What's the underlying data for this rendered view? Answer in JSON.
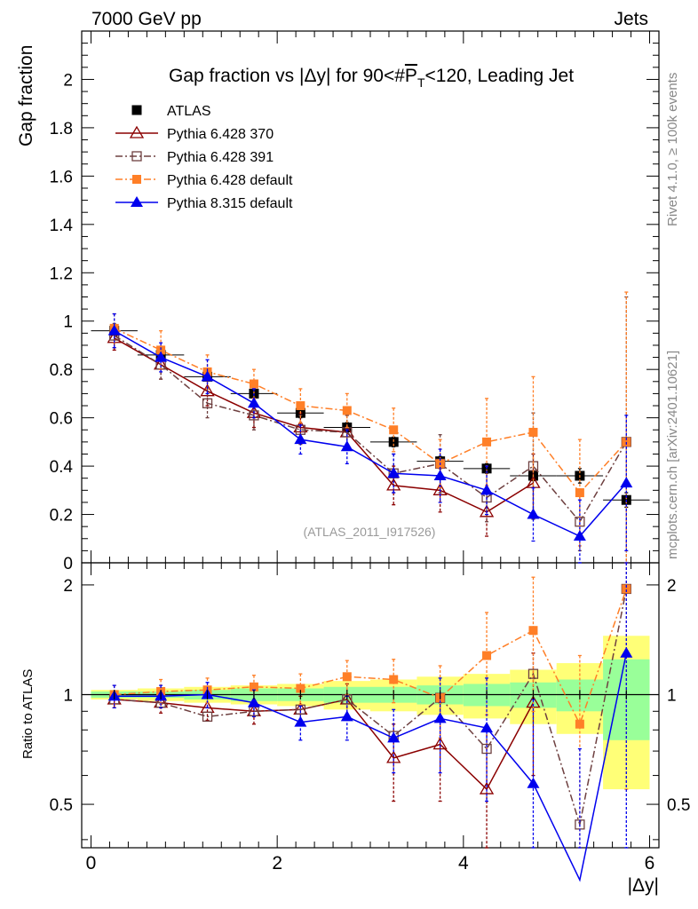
{
  "header": {
    "left": "7000 GeV pp",
    "right": "Jets"
  },
  "side_labels": {
    "rivet": "Rivet 4.1.0, ≥ 100k events",
    "mcplots": "mcplots.cern.ch [arXiv:2401.10621]"
  },
  "chart_data": {
    "type": "scatter",
    "title": "Gap fraction vs |Δy| for 90<#P̅T<120, Leading Jet",
    "title_parts": {
      "pre": "Gap fraction vs |Δy| for 90<#",
      "P": "P",
      "T": "T",
      "post": "<120, Leading Jet"
    },
    "xlabel": "|Δy|",
    "ylabel": "Gap fraction",
    "ratio_ylabel": "Ratio to ATLAS",
    "watermark": "(ATLAS_2011_I917526)",
    "xlim": [
      -0.1,
      6.1
    ],
    "ylim": [
      0,
      2.2
    ],
    "ratio_ylim": [
      0.38,
      2.3
    ],
    "x_ticks": [
      "0",
      "2",
      "4",
      "6"
    ],
    "y_ticks": [
      "0",
      "0.2",
      "0.4",
      "0.6",
      "0.8",
      "1",
      "1.2",
      "1.4",
      "1.6",
      "1.8",
      "2"
    ],
    "ratio_ticks": [
      "0.5",
      "1",
      "2"
    ],
    "x": [
      0.25,
      0.75,
      1.25,
      1.75,
      2.25,
      2.75,
      3.25,
      3.75,
      4.25,
      4.75,
      5.25,
      5.75
    ],
    "series": [
      {
        "name": "ATLAS",
        "style": "data",
        "color": "#000000",
        "values": [
          0.96,
          0.86,
          0.77,
          0.7,
          0.62,
          0.56,
          0.5,
          0.42,
          0.39,
          0.36,
          0.36,
          0.26
        ],
        "errors": [
          0.01,
          0.01,
          0.01,
          0.02,
          0.02,
          0.02,
          0.02,
          0.02,
          0.02,
          0.02,
          0.03,
          0.03
        ]
      },
      {
        "name": "Pythia 6.428 370",
        "style": "open-triangle",
        "dash": "",
        "color": "#8b0000",
        "values": [
          0.93,
          0.82,
          0.71,
          0.62,
          0.56,
          0.54,
          0.32,
          0.3,
          0.21,
          0.33,
          null,
          null
        ],
        "errors": [
          0.05,
          0.06,
          0.06,
          0.06,
          0.06,
          0.07,
          0.08,
          0.09,
          0.1,
          0.12,
          null,
          null
        ]
      },
      {
        "name": "Pythia 6.428 391",
        "style": "open-square",
        "dash": "8,3,2,3",
        "color": "#6e4040",
        "values": [
          0.94,
          0.82,
          0.66,
          0.61,
          0.55,
          0.54,
          0.37,
          0.41,
          0.27,
          0.4,
          0.17,
          0.5
        ],
        "errors": [
          0.05,
          0.06,
          0.06,
          0.06,
          0.06,
          0.07,
          0.08,
          0.12,
          0.1,
          0.22,
          0.12,
          0.6
        ]
      },
      {
        "name": "Pythia 6.428 default",
        "style": "filled-square",
        "dash": "8,3,2,3",
        "color": "#ff7f27",
        "values": [
          0.97,
          0.88,
          0.79,
          0.74,
          0.65,
          0.63,
          0.55,
          0.41,
          0.5,
          0.54,
          0.29,
          0.5
        ],
        "errors": [
          0.06,
          0.08,
          0.07,
          0.06,
          0.07,
          0.07,
          0.09,
          0.1,
          0.18,
          0.23,
          0.22,
          0.62
        ]
      },
      {
        "name": "Pythia 8.315 default",
        "style": "filled-triangle",
        "dash": "",
        "color": "#0000ee",
        "values": [
          0.96,
          0.85,
          0.77,
          0.66,
          0.51,
          0.48,
          0.37,
          0.36,
          0.3,
          0.2,
          0.11,
          0.33
        ],
        "errors": [
          0.07,
          0.06,
          0.07,
          0.06,
          0.06,
          0.07,
          0.08,
          0.11,
          0.1,
          0.11,
          0.15,
          0.28
        ]
      }
    ],
    "ratio_series": [
      {
        "name": "Pythia 6.428 370",
        "values": [
          0.97,
          0.95,
          0.92,
          0.9,
          0.91,
          0.97,
          0.67,
          0.73,
          0.55,
          0.95,
          null,
          null
        ],
        "errors": [
          0.05,
          0.06,
          0.07,
          0.07,
          0.08,
          0.1,
          0.16,
          0.22,
          0.25,
          0.35,
          null,
          null
        ]
      },
      {
        "name": "Pythia 6.428 391",
        "values": [
          0.97,
          0.95,
          0.87,
          0.9,
          0.91,
          0.97,
          0.77,
          0.98,
          0.71,
          1.14,
          0.44,
          1.95
        ]
      },
      {
        "name": "Pythia 6.428 default",
        "values": [
          1.0,
          1.02,
          1.03,
          1.05,
          1.04,
          1.12,
          1.1,
          0.98,
          1.28,
          1.5,
          0.83,
          1.95
        ],
        "errors": [
          0.06,
          0.08,
          0.08,
          0.08,
          0.1,
          0.12,
          0.15,
          0.22,
          0.4,
          0.6,
          0.45,
          1.4
        ]
      },
      {
        "name": "Pythia 8.315 default",
        "values": [
          0.99,
          0.99,
          1.0,
          0.95,
          0.84,
          0.87,
          0.76,
          0.86,
          0.81,
          0.57,
          0.31,
          1.3
        ],
        "errors": [
          0.07,
          0.07,
          0.08,
          0.08,
          0.09,
          0.12,
          0.15,
          0.25,
          0.3,
          0.4,
          0.4,
          1.0
        ]
      }
    ],
    "bands": {
      "green": [
        0.02,
        0.02,
        0.03,
        0.04,
        0.04,
        0.05,
        0.05,
        0.06,
        0.07,
        0.08,
        0.1,
        0.25
      ],
      "yellow": [
        0.03,
        0.04,
        0.05,
        0.06,
        0.07,
        0.09,
        0.1,
        0.12,
        0.14,
        0.17,
        0.22,
        0.45
      ]
    }
  }
}
